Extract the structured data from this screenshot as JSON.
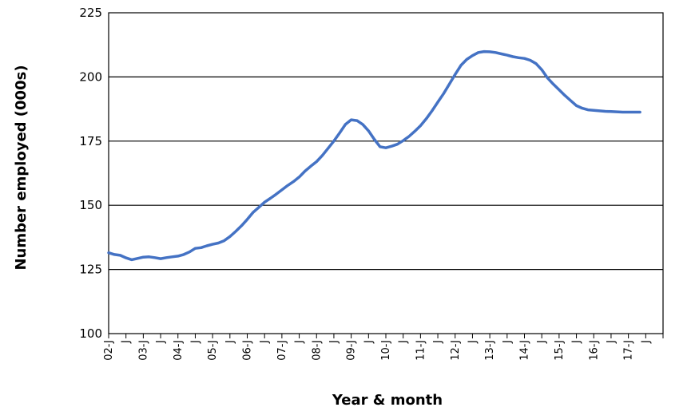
{
  "chart_data": {
    "type": "line",
    "xlabel": "Year & month",
    "ylabel": "Number employed (000s)",
    "ylim": [
      100,
      225
    ],
    "yticks": [
      100,
      125,
      150,
      175,
      200,
      225
    ],
    "grid": "horizontal",
    "line_color": "#4472C4",
    "x_tick_labels": [
      "02-J",
      "J",
      "03-J",
      "J",
      "04-J",
      "J",
      "05-J",
      "J",
      "06-J",
      "J",
      "07-J",
      "J",
      "08-J",
      "J",
      "09-J",
      "J",
      "10-J",
      "J",
      "11-J",
      "J",
      "12-J",
      "J",
      "13-J",
      "J",
      "14-J",
      "J",
      "15-J",
      "J",
      "16-J",
      "J",
      "17-J",
      "J"
    ],
    "series": [
      {
        "x": [
          "2002-01",
          "2002-03",
          "2002-05",
          "2002-07",
          "2002-09",
          "2002-11",
          "2003-01",
          "2003-03",
          "2003-05",
          "2003-07",
          "2003-09",
          "2003-11",
          "2004-01",
          "2004-03",
          "2004-05",
          "2004-07",
          "2004-09",
          "2004-11",
          "2005-01",
          "2005-03",
          "2005-05",
          "2005-07",
          "2005-09",
          "2005-11",
          "2006-01",
          "2006-03",
          "2006-05",
          "2006-07",
          "2006-09",
          "2006-11",
          "2007-01",
          "2007-03",
          "2007-05",
          "2007-07",
          "2007-09",
          "2007-11",
          "2008-01",
          "2008-03",
          "2008-05",
          "2008-07",
          "2008-09",
          "2008-11",
          "2009-01",
          "2009-03",
          "2009-05",
          "2009-07",
          "2009-09",
          "2009-11",
          "2010-01",
          "2010-03",
          "2010-05",
          "2010-07",
          "2010-09",
          "2010-11",
          "2011-01",
          "2011-03",
          "2011-05",
          "2011-07",
          "2011-09",
          "2011-11",
          "2012-01",
          "2012-03",
          "2012-05",
          "2012-07",
          "2012-09",
          "2012-11",
          "2013-01",
          "2013-03",
          "2013-05",
          "2013-07",
          "2013-09",
          "2013-11",
          "2014-01",
          "2014-03",
          "2014-05",
          "2014-07",
          "2014-09",
          "2014-11",
          "2015-01",
          "2015-03",
          "2015-05",
          "2015-07",
          "2015-09",
          "2015-11",
          "2016-01",
          "2016-03",
          "2016-05",
          "2016-07",
          "2016-09",
          "2016-11",
          "2017-01",
          "2017-03",
          "2017-05"
        ],
        "values": [
          131.5,
          130.8,
          130.5,
          129.5,
          128.8,
          129.3,
          129.8,
          129.9,
          129.6,
          129.2,
          129.6,
          129.9,
          130.2,
          130.8,
          131.8,
          133.2,
          133.5,
          134.2,
          134.8,
          135.3,
          136.2,
          137.8,
          139.8,
          142.0,
          144.5,
          147.2,
          149.2,
          151.2,
          152.7,
          154.3,
          156.0,
          157.7,
          159.2,
          161.0,
          163.3,
          165.2,
          167.0,
          169.4,
          172.2,
          175.0,
          178.2,
          181.5,
          183.3,
          183.0,
          181.5,
          179.0,
          175.7,
          172.8,
          172.4,
          173.0,
          173.8,
          175.2,
          176.8,
          178.8,
          181.0,
          183.7,
          186.8,
          190.2,
          193.5,
          197.2,
          201.0,
          204.5,
          206.8,
          208.3,
          209.5,
          209.9,
          209.8,
          209.5,
          209.0,
          208.5,
          207.9,
          207.5,
          207.2,
          206.5,
          205.2,
          202.8,
          199.6,
          197.2,
          195.0,
          192.8,
          190.8,
          188.8,
          187.8,
          187.2,
          187.0,
          186.8,
          186.6,
          186.5,
          186.4,
          186.3,
          186.3,
          186.3,
          186.3
        ]
      }
    ]
  }
}
